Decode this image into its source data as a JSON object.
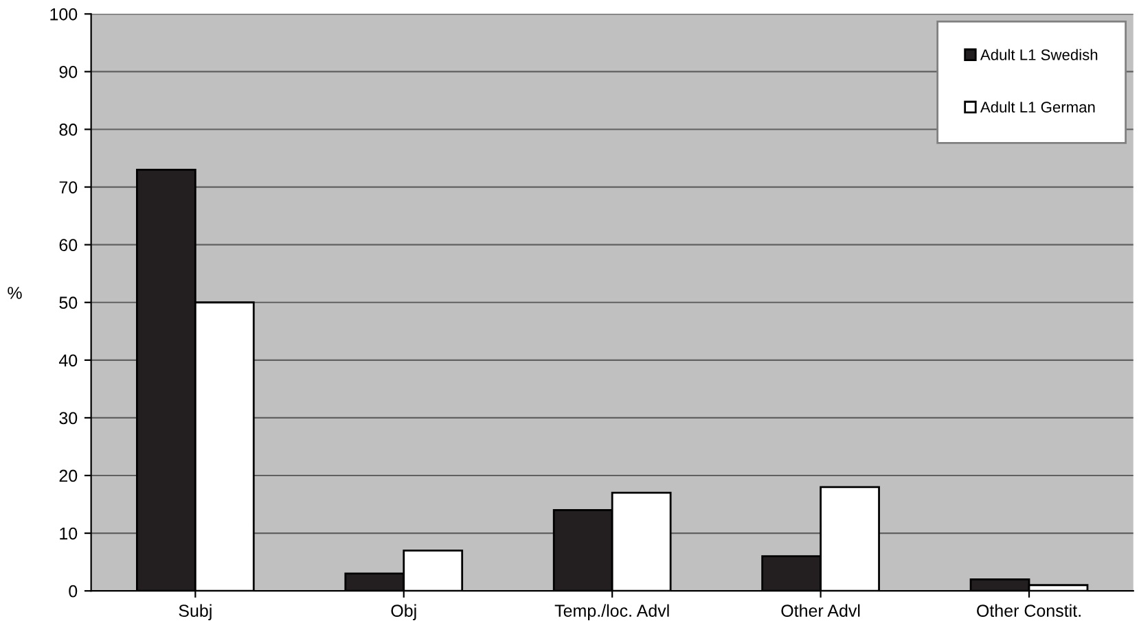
{
  "chart_data": {
    "type": "bar",
    "ylabel": "%",
    "categories": [
      "Subj",
      "Obj",
      "Temp./loc. Advl",
      "Other Advl",
      "Other Constit."
    ],
    "series": [
      {
        "name": "Adult L1 Swedish",
        "color": "#231f20",
        "values": [
          73,
          3,
          14,
          6,
          2
        ]
      },
      {
        "name": "Adult L1 German",
        "color": "#ffffff",
        "values": [
          50,
          7,
          17,
          18,
          1
        ]
      }
    ],
    "ylim": [
      0,
      100
    ],
    "yticks": [
      0,
      10,
      20,
      30,
      40,
      50,
      60,
      70,
      80,
      90,
      100
    ],
    "grid": "y",
    "legend": "top right"
  }
}
